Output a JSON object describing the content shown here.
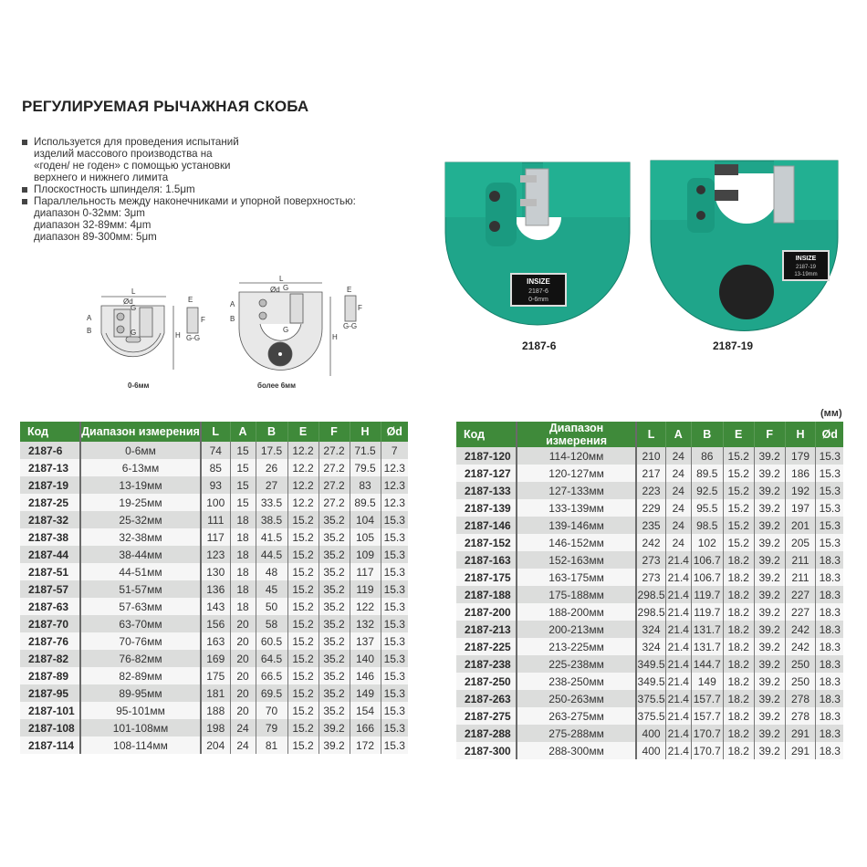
{
  "title": "РЕГУЛИРУЕМАЯ РЫЧАЖНАЯ СКОБА",
  "features": [
    {
      "lines": [
        "Используется для проведения испытаний",
        "изделий массового производства на",
        "«годен/ не годен» с помощью установки",
        "верхнего и нижнего лимита"
      ]
    },
    {
      "lines": [
        "Плоскостность шпинделя: 1.5μm"
      ]
    },
    {
      "lines": [
        "Параллельность между наконечниками и упорной поверхностью:",
        "диапазон 0-32мм: 3μm",
        "диапазон 32-89мм: 4μm",
        "диапазон 89-300мм: 5μm"
      ]
    }
  ],
  "diagrams": {
    "small": {
      "caption": "0-6мм",
      "labels": {
        "L": "L",
        "A": "A",
        "B": "B",
        "H": "H",
        "d": "Ød",
        "G": "G",
        "E": "E",
        "F": "F",
        "GG": "G-G"
      }
    },
    "large": {
      "caption": "более 6мм",
      "labels": {
        "L": "L",
        "A": "A",
        "B": "B",
        "H": "H",
        "d": "Ød",
        "G": "G",
        "E": "E",
        "F": "F",
        "GG": "G-G"
      }
    }
  },
  "photos": [
    {
      "caption": "2187-6",
      "brand": "INSIZE",
      "plate_model": "2187-6",
      "plate_range": "0-6mm",
      "color": "#1fa58a"
    },
    {
      "caption": "2187-19",
      "brand": "INSIZE",
      "plate_model": "2187-19",
      "plate_range": "13-19mm",
      "color": "#1fa58a"
    }
  ],
  "unit": "(мм)",
  "colors": {
    "header": "#3f8a3a",
    "row_odd": "#dcdddc",
    "row_even": "#f6f6f6"
  },
  "table": {
    "headers": [
      "Код",
      "Диапазон измерения",
      "L",
      "A",
      "B",
      "E",
      "F",
      "H",
      "Ød"
    ],
    "left_rows": [
      [
        "2187-6",
        "0-6мм",
        "74",
        "15",
        "17.5",
        "12.2",
        "27.2",
        "71.5",
        "7"
      ],
      [
        "2187-13",
        "6-13мм",
        "85",
        "15",
        "26",
        "12.2",
        "27.2",
        "79.5",
        "12.3"
      ],
      [
        "2187-19",
        "13-19мм",
        "93",
        "15",
        "27",
        "12.2",
        "27.2",
        "83",
        "12.3"
      ],
      [
        "2187-25",
        "19-25мм",
        "100",
        "15",
        "33.5",
        "12.2",
        "27.2",
        "89.5",
        "12.3"
      ],
      [
        "2187-32",
        "25-32мм",
        "111",
        "18",
        "38.5",
        "15.2",
        "35.2",
        "104",
        "15.3"
      ],
      [
        "2187-38",
        "32-38мм",
        "117",
        "18",
        "41.5",
        "15.2",
        "35.2",
        "105",
        "15.3"
      ],
      [
        "2187-44",
        "38-44мм",
        "123",
        "18",
        "44.5",
        "15.2",
        "35.2",
        "109",
        "15.3"
      ],
      [
        "2187-51",
        "44-51мм",
        "130",
        "18",
        "48",
        "15.2",
        "35.2",
        "117",
        "15.3"
      ],
      [
        "2187-57",
        "51-57мм",
        "136",
        "18",
        "45",
        "15.2",
        "35.2",
        "119",
        "15.3"
      ],
      [
        "2187-63",
        "57-63мм",
        "143",
        "18",
        "50",
        "15.2",
        "35.2",
        "122",
        "15.3"
      ],
      [
        "2187-70",
        "63-70мм",
        "156",
        "20",
        "58",
        "15.2",
        "35.2",
        "132",
        "15.3"
      ],
      [
        "2187-76",
        "70-76мм",
        "163",
        "20",
        "60.5",
        "15.2",
        "35.2",
        "137",
        "15.3"
      ],
      [
        "2187-82",
        "76-82мм",
        "169",
        "20",
        "64.5",
        "15.2",
        "35.2",
        "140",
        "15.3"
      ],
      [
        "2187-89",
        "82-89мм",
        "175",
        "20",
        "66.5",
        "15.2",
        "35.2",
        "146",
        "15.3"
      ],
      [
        "2187-95",
        "89-95мм",
        "181",
        "20",
        "69.5",
        "15.2",
        "35.2",
        "149",
        "15.3"
      ],
      [
        "2187-101",
        "95-101мм",
        "188",
        "20",
        "70",
        "15.2",
        "35.2",
        "154",
        "15.3"
      ],
      [
        "2187-108",
        "101-108мм",
        "198",
        "24",
        "79",
        "15.2",
        "39.2",
        "166",
        "15.3"
      ],
      [
        "2187-114",
        "108-114мм",
        "204",
        "24",
        "81",
        "15.2",
        "39.2",
        "172",
        "15.3"
      ]
    ],
    "right_rows": [
      [
        "2187-120",
        "114-120мм",
        "210",
        "24",
        "86",
        "15.2",
        "39.2",
        "179",
        "15.3"
      ],
      [
        "2187-127",
        "120-127мм",
        "217",
        "24",
        "89.5",
        "15.2",
        "39.2",
        "186",
        "15.3"
      ],
      [
        "2187-133",
        "127-133мм",
        "223",
        "24",
        "92.5",
        "15.2",
        "39.2",
        "192",
        "15.3"
      ],
      [
        "2187-139",
        "133-139мм",
        "229",
        "24",
        "95.5",
        "15.2",
        "39.2",
        "197",
        "15.3"
      ],
      [
        "2187-146",
        "139-146мм",
        "235",
        "24",
        "98.5",
        "15.2",
        "39.2",
        "201",
        "15.3"
      ],
      [
        "2187-152",
        "146-152мм",
        "242",
        "24",
        "102",
        "15.2",
        "39.2",
        "205",
        "15.3"
      ],
      [
        "2187-163",
        "152-163мм",
        "273",
        "21.4",
        "106.7",
        "18.2",
        "39.2",
        "211",
        "18.3"
      ],
      [
        "2187-175",
        "163-175мм",
        "273",
        "21.4",
        "106.7",
        "18.2",
        "39.2",
        "211",
        "18.3"
      ],
      [
        "2187-188",
        "175-188мм",
        "298.5",
        "21.4",
        "119.7",
        "18.2",
        "39.2",
        "227",
        "18.3"
      ],
      [
        "2187-200",
        "188-200мм",
        "298.5",
        "21.4",
        "119.7",
        "18.2",
        "39.2",
        "227",
        "18.3"
      ],
      [
        "2187-213",
        "200-213мм",
        "324",
        "21.4",
        "131.7",
        "18.2",
        "39.2",
        "242",
        "18.3"
      ],
      [
        "2187-225",
        "213-225мм",
        "324",
        "21.4",
        "131.7",
        "18.2",
        "39.2",
        "242",
        "18.3"
      ],
      [
        "2187-238",
        "225-238мм",
        "349.5",
        "21.4",
        "144.7",
        "18.2",
        "39.2",
        "250",
        "18.3"
      ],
      [
        "2187-250",
        "238-250мм",
        "349.5",
        "21.4",
        "149",
        "18.2",
        "39.2",
        "250",
        "18.3"
      ],
      [
        "2187-263",
        "250-263мм",
        "375.5",
        "21.4",
        "157.7",
        "18.2",
        "39.2",
        "278",
        "18.3"
      ],
      [
        "2187-275",
        "263-275мм",
        "375.5",
        "21.4",
        "157.7",
        "18.2",
        "39.2",
        "278",
        "18.3"
      ],
      [
        "2187-288",
        "275-288мм",
        "400",
        "21.4",
        "170.7",
        "18.2",
        "39.2",
        "291",
        "18.3"
      ],
      [
        "2187-300",
        "288-300мм",
        "400",
        "21.4",
        "170.7",
        "18.2",
        "39.2",
        "291",
        "18.3"
      ]
    ]
  }
}
